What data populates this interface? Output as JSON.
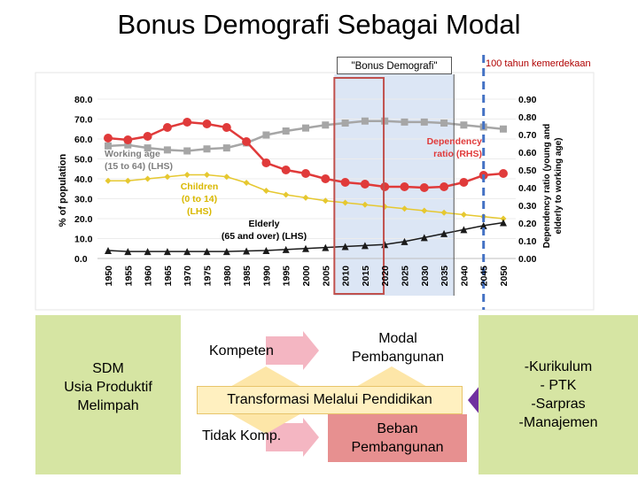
{
  "page": {
    "title": "Bonus Demografi Sebagai Modal",
    "bonus_label": "\"Bonus Demografi\"",
    "merdeka_label": "100 tahun kemerdekaan"
  },
  "colors": {
    "working_age": "#a6a6a6",
    "dependency": "#e03a3a",
    "children": "#e6c830",
    "elderly": "#1a1a1a",
    "highlight_fill": "#dce6f5",
    "highlight_border": "#c0504d",
    "dashed_line": "#4472c4",
    "green_box": "#d6e5a3",
    "pink_box": "#e79090",
    "purple_arrow": "#7030a0",
    "pink_arrow": "#f4b6c2"
  },
  "chart_data": {
    "type": "line",
    "x": [
      1950,
      1955,
      1960,
      1965,
      1970,
      1975,
      1980,
      1985,
      1990,
      1995,
      2000,
      2005,
      2010,
      2015,
      2020,
      2025,
      2030,
      2035,
      2040,
      2045,
      2050
    ],
    "x_tick_labels": [
      "1950",
      "1955",
      "1960",
      "1965",
      "1970",
      "1975",
      "1980",
      "1985",
      "1990",
      "1995",
      "2000",
      "2005",
      "2010",
      "2015",
      "2020",
      "2025",
      "2030",
      "2035",
      "2040",
      "2045",
      "2050"
    ],
    "ylabel": "% of population",
    "ylabel_right": "Dependency ratio (young and elderly to working age)",
    "ylim": [
      0,
      80
    ],
    "ylim_right": [
      0,
      0.9
    ],
    "y_tick_labels": [
      "0.0",
      "10.0",
      "20.0",
      "30.0",
      "40.0",
      "50.0",
      "60.0",
      "70.0",
      "80.0"
    ],
    "y_right_tick_labels": [
      "0.00",
      "0.10",
      "0.20",
      "0.30",
      "0.40",
      "0.50",
      "0.60",
      "0.70",
      "0.80",
      "0.90"
    ],
    "series": [
      {
        "name": "Working age (15 to 64) (LHS)",
        "axis": "left",
        "values": [
          56.5,
          57,
          55.5,
          54.5,
          54,
          55,
          55.5,
          58,
          62,
          64,
          65.5,
          67,
          68,
          69,
          69,
          68.5,
          68.5,
          68,
          67,
          66,
          65
        ]
      },
      {
        "name": "Dependency ratio (RHS)",
        "axis": "right",
        "values": [
          0.68,
          0.67,
          0.69,
          0.74,
          0.77,
          0.76,
          0.74,
          0.66,
          0.54,
          0.5,
          0.48,
          0.45,
          0.43,
          0.42,
          0.405,
          0.405,
          0.4,
          0.405,
          0.43,
          0.47,
          0.48
        ]
      },
      {
        "name": "Children (0 to 14) (LHS)",
        "axis": "left",
        "values": [
          39,
          39,
          40,
          41,
          42,
          42,
          41,
          38,
          34,
          32,
          30.5,
          29,
          28,
          27,
          26,
          25,
          24,
          23,
          22,
          21,
          20
        ]
      },
      {
        "name": "Elderly (65 and over) (LHS)",
        "axis": "left",
        "values": [
          4,
          3.5,
          3.5,
          3.5,
          3.5,
          3.5,
          3.5,
          3.8,
          4,
          4.5,
          5,
          5.5,
          6,
          6.5,
          7,
          8.5,
          10.5,
          12.5,
          14.5,
          16.5,
          18
        ]
      }
    ],
    "annotations": {
      "working_age": "Working age\n(15 to 64) (LHS)",
      "dependency": "Dependency\nratio (RHS)",
      "children": "Children\n(0 to 14)\n(LHS)",
      "elderly": "Elderly\n(65 and over) (LHS)"
    },
    "highlight_range": [
      2010,
      2035
    ],
    "marker_year": 2045
  },
  "diagram": {
    "left_box": "SDM\nUsia Produktif\nMelimpah",
    "kompeten": "Kompeten",
    "modal": "Modal\nPembangunan",
    "transformasi": "Transformasi Melalui Pendidikan",
    "tidak_komp": "Tidak Komp.",
    "beban": "Beban\nPembangunan",
    "right_box": "-Kurikulum\n- PTK\n-Sarpras\n-Manajemen"
  }
}
